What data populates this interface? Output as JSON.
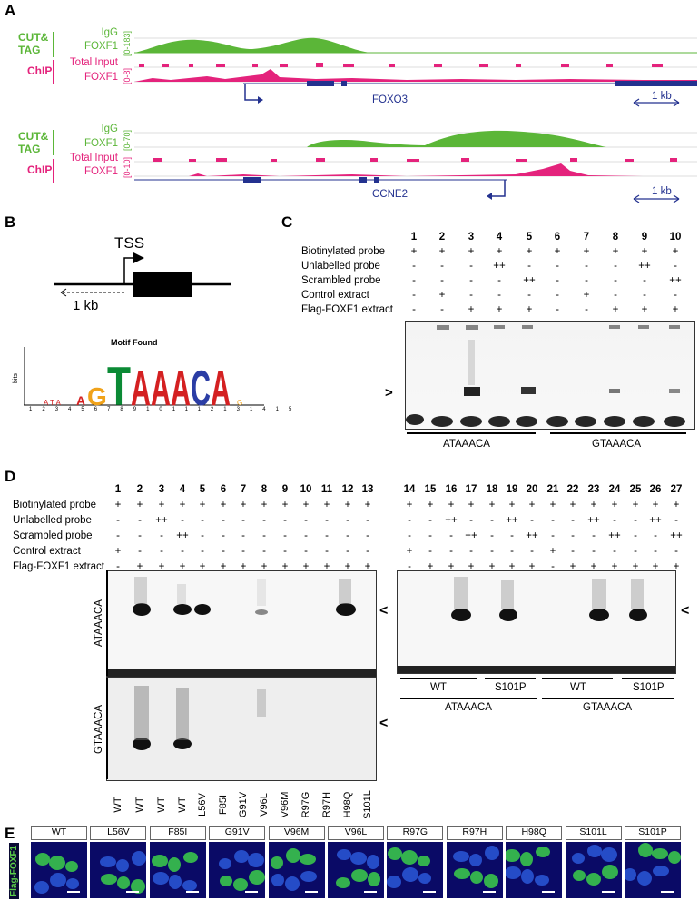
{
  "panels": {
    "A": "A",
    "B": "B",
    "C": "C",
    "D": "D",
    "E": "E"
  },
  "panelA": {
    "tracks1": {
      "cut_tag_label": [
        "CUT&",
        "TAG"
      ],
      "chip_label": "ChIP",
      "igg": "IgG",
      "foxf1_a": "FOXF1",
      "range1": "[0-183]",
      "total_input": "Total Input",
      "foxf1_b": "FOXF1",
      "range2": "[0-8]",
      "gene": "FOXO3",
      "scale": "1 kb"
    },
    "tracks2": {
      "cut_tag_label": [
        "CUT&",
        "TAG"
      ],
      "chip_label": "ChIP",
      "igg": "IgG",
      "foxf1_a": "FOXF1",
      "range1": "[0-70]",
      "total_input": "Total Input",
      "foxf1_b": "FOXF1",
      "range2": "[0-10]",
      "gene": "CCNE2",
      "scale": "1 kb"
    }
  },
  "panelB": {
    "tss": "TSS",
    "distance": "1 kb",
    "motif_title": "Motif Found",
    "bits": "bits",
    "motif_letters": "TAAACA",
    "positions": [
      "1",
      "2",
      "3",
      "4",
      "5",
      "6",
      "7",
      "8",
      "9",
      "10",
      "11",
      "12",
      "13",
      "14",
      "15"
    ]
  },
  "panelC": {
    "lanes": [
      "1",
      "2",
      "3",
      "4",
      "5",
      "6",
      "7",
      "8",
      "9",
      "10"
    ],
    "rows": [
      {
        "label": "Biotinylated probe",
        "values": [
          "+",
          "+",
          "+",
          "+",
          "+",
          "+",
          "+",
          "+",
          "+",
          "+"
        ]
      },
      {
        "label": "Unlabelled probe",
        "values": [
          "-",
          "-",
          "-",
          "++",
          "-",
          "-",
          "-",
          "-",
          "++",
          "-"
        ]
      },
      {
        "label": "Scrambled probe",
        "values": [
          "-",
          "-",
          "-",
          "-",
          "++",
          "-",
          "-",
          "-",
          "-",
          "++"
        ]
      },
      {
        "label": "Control extract",
        "values": [
          "-",
          "+",
          "-",
          "-",
          "-",
          "-",
          "+",
          "-",
          "-",
          "-"
        ]
      },
      {
        "label": "Flag-FOXF1 extract",
        "values": [
          "-",
          "-",
          "+",
          "+",
          "+",
          "-",
          "-",
          "+",
          "+",
          "+"
        ]
      }
    ],
    "probe_left": "ATAAACA",
    "probe_right": "GTAAACA",
    "arrow": ">"
  },
  "panelD": {
    "lanes_left": [
      "1",
      "2",
      "3",
      "4",
      "5",
      "6",
      "7",
      "8",
      "9",
      "10",
      "11",
      "12",
      "13"
    ],
    "lanes_right": [
      "14",
      "15",
      "16",
      "17",
      "18",
      "19",
      "20",
      "21",
      "22",
      "23",
      "24",
      "25",
      "26",
      "27"
    ],
    "rows": [
      {
        "label": "Biotinylated probe",
        "left": [
          "+",
          "+",
          "+",
          "+",
          "+",
          "+",
          "+",
          "+",
          "+",
          "+",
          "+",
          "+",
          "+"
        ],
        "right": [
          "+",
          "+",
          "+",
          "+",
          "+",
          "+",
          "+",
          "+",
          "+",
          "+",
          "+",
          "+",
          "+",
          "+"
        ]
      },
      {
        "label": "Unlabelled probe",
        "left": [
          "-",
          "-",
          "++",
          "-",
          "-",
          "-",
          "-",
          "-",
          "-",
          "-",
          "-",
          "-",
          "-"
        ],
        "right": [
          "-",
          "-",
          "++",
          "-",
          "-",
          "++",
          "-",
          "-",
          "-",
          "++",
          "-",
          "-",
          "++",
          "-"
        ]
      },
      {
        "label": "Scrambled probe",
        "left": [
          "-",
          "-",
          "-",
          "++",
          "-",
          "-",
          "-",
          "-",
          "-",
          "-",
          "-",
          "-",
          "-"
        ],
        "right": [
          "-",
          "-",
          "-",
          "++",
          "-",
          "-",
          "++",
          "-",
          "-",
          "-",
          "++",
          "-",
          "-",
          "++"
        ]
      },
      {
        "label": "Control extract",
        "left": [
          "+",
          "-",
          "-",
          "-",
          "-",
          "-",
          "-",
          "-",
          "-",
          "-",
          "-",
          "-",
          "-"
        ],
        "right": [
          "+",
          "-",
          "-",
          "-",
          "-",
          "-",
          "-",
          "+",
          "-",
          "-",
          "-",
          "-",
          "-",
          "-"
        ]
      },
      {
        "label": "Flag-FOXF1 extract",
        "left": [
          "-",
          "+",
          "+",
          "+",
          "+",
          "+",
          "+",
          "+",
          "+",
          "+",
          "+",
          "+",
          "+"
        ],
        "right": [
          "-",
          "+",
          "+",
          "+",
          "+",
          "+",
          "+",
          "-",
          "+",
          "+",
          "+",
          "+",
          "+",
          "+"
        ]
      }
    ],
    "gel_top_label": "ATAAACA",
    "gel_bottom_label": "GTAAACA",
    "mutations": [
      "WT",
      "WT",
      "WT",
      "WT",
      "L56V",
      "F85I",
      "G91V",
      "V96L",
      "V96M",
      "R97G",
      "R97H",
      "H98Q",
      "S101L"
    ],
    "right_groups": {
      "wt1": "WT",
      "s101p1": "S101P",
      "wt2": "WT",
      "s101p2": "S101P",
      "probe1": "ATAAACA",
      "probe2": "GTAAACA"
    },
    "arrow": "<"
  },
  "panelE": {
    "side_label": "Flag-FOXF1",
    "labels": [
      "WT",
      "L56V",
      "F85I",
      "G91V",
      "V96M",
      "V96L",
      "R97G",
      "R97H",
      "H98Q",
      "S101L",
      "S101P"
    ]
  }
}
